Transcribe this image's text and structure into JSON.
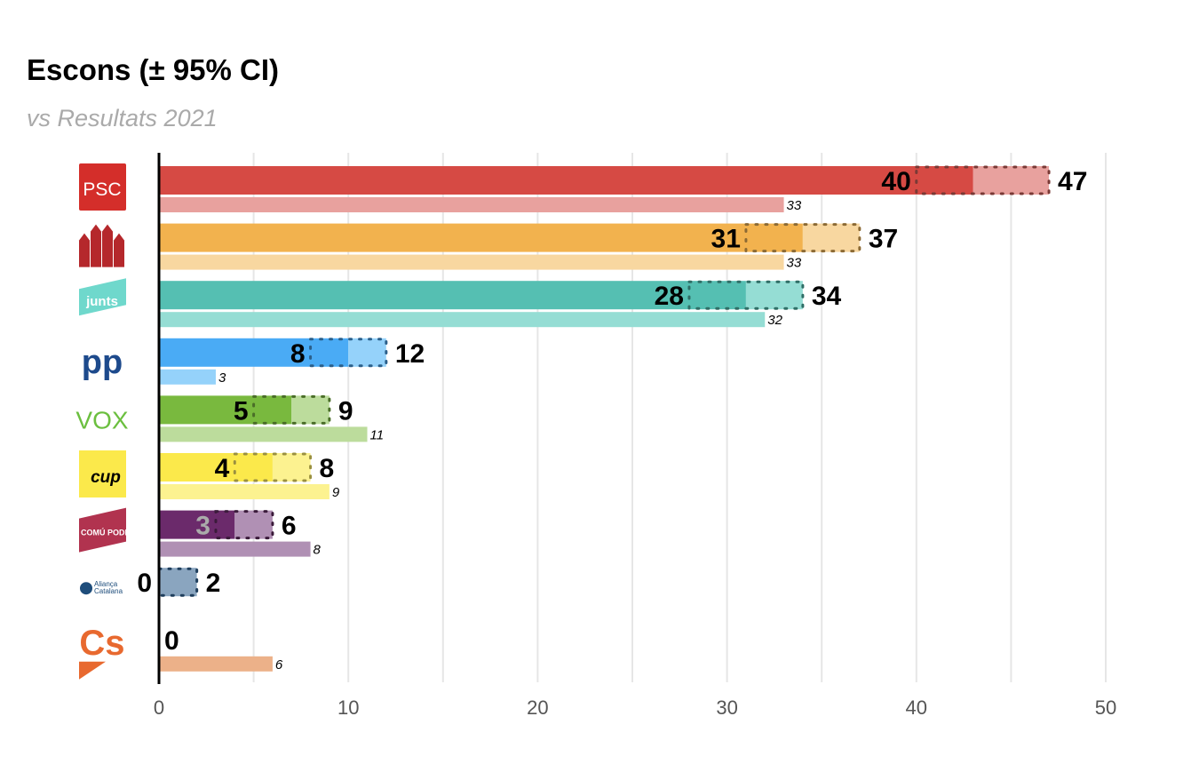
{
  "chart_data": {
    "type": "bar",
    "title": "Escons (± 95% CI)",
    "subtitle": "vs Resultats 2021",
    "xlim": [
      0,
      50
    ],
    "xticks": [
      0,
      10,
      20,
      30,
      40,
      50
    ],
    "grid": true,
    "series": [
      {
        "logo": "PSC",
        "median": 43,
        "low": 40,
        "high": 47,
        "previous": 33,
        "color": "#d64a44",
        "light": "#e8a19e",
        "dot": "#7a3a36"
      },
      {
        "logo": "ERC",
        "median": 34,
        "low": 31,
        "high": 37,
        "previous": 33,
        "color": "#f2b24e",
        "light": "#f8d7a0",
        "dot": "#8c6a34"
      },
      {
        "logo": "junts",
        "median": 31,
        "low": 28,
        "high": 34,
        "previous": 32,
        "color": "#55bfb2",
        "light": "#95ddd4",
        "dot": "#2f6e66"
      },
      {
        "logo": "pp",
        "median": 10,
        "low": 8,
        "high": 12,
        "previous": 3,
        "color": "#4aabf5",
        "light": "#95d2fa",
        "dot": "#2b5f8a"
      },
      {
        "logo": "VOX",
        "median": 7,
        "low": 5,
        "high": 9,
        "previous": 11,
        "color": "#79b93e",
        "light": "#bcdc9c",
        "dot": "#4a6e28"
      },
      {
        "logo": "cup",
        "median": 6,
        "low": 4,
        "high": 8,
        "previous": 9,
        "color": "#fbe94b",
        "light": "#fcf290",
        "dot": "#9a9040"
      },
      {
        "logo": "EN COMÚ PODEM",
        "median": 4,
        "low": 3,
        "high": 6,
        "previous": 8,
        "color": "#6b2a6b",
        "light": "#b090b4",
        "dot": "#3a1a3a",
        "low_label_color": "#aaaaaa"
      },
      {
        "logo": "Aliança Catalana",
        "median": 0,
        "low": 0,
        "high": 2,
        "previous": null,
        "color": "#1e4d7b",
        "light": "#8aa5bf",
        "dot": "#1e3d5b"
      },
      {
        "logo": "Cs",
        "median": 0,
        "low": 0,
        "high": 0,
        "previous": 6,
        "color": "#e8692f",
        "light": "#ecb189",
        "dot": "#8a4020"
      }
    ]
  }
}
